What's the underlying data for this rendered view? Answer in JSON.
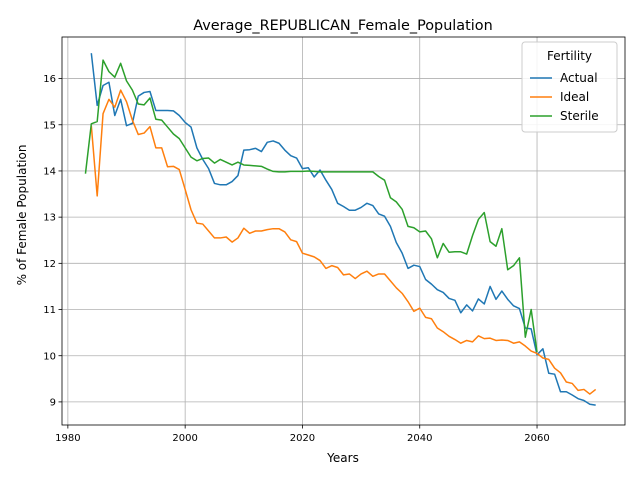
{
  "chart_data": {
    "type": "line",
    "title": "Average_REPUBLICAN_Female_Population",
    "xlabel": "Years",
    "ylabel": "% of Female Population",
    "xlim": [
      1979,
      2075
    ],
    "ylim": [
      8.5,
      16.9
    ],
    "xticks": [
      1980,
      2000,
      2020,
      2040,
      2060
    ],
    "yticks": [
      9,
      10,
      11,
      12,
      13,
      14,
      15,
      16
    ],
    "grid": true,
    "legend": {
      "title": "Fertility",
      "position": "top-right"
    },
    "series": [
      {
        "name": "Actual",
        "color": "#1f77b4",
        "points": [
          [
            1984,
            16.55
          ],
          [
            1985,
            15.42
          ],
          [
            1986,
            15.85
          ],
          [
            1987,
            15.92
          ],
          [
            1988,
            15.2
          ],
          [
            1989,
            15.55
          ],
          [
            1990,
            14.98
          ],
          [
            1991,
            15.03
          ],
          [
            1992,
            15.62
          ],
          [
            1993,
            15.7
          ],
          [
            1994,
            15.72
          ],
          [
            1995,
            15.31
          ],
          [
            1996,
            15.31
          ],
          [
            1997,
            15.31
          ],
          [
            1998,
            15.3
          ],
          [
            1999,
            15.2
          ],
          [
            2000,
            15.05
          ],
          [
            2001,
            14.95
          ],
          [
            2002,
            14.5
          ],
          [
            2003,
            14.25
          ],
          [
            2004,
            14.05
          ],
          [
            2005,
            13.73
          ],
          [
            2006,
            13.7
          ],
          [
            2007,
            13.7
          ],
          [
            2008,
            13.77
          ],
          [
            2009,
            13.9
          ],
          [
            2010,
            14.45
          ],
          [
            2011,
            14.46
          ],
          [
            2012,
            14.49
          ],
          [
            2013,
            14.42
          ],
          [
            2014,
            14.62
          ],
          [
            2015,
            14.65
          ],
          [
            2016,
            14.6
          ],
          [
            2017,
            14.45
          ],
          [
            2018,
            14.33
          ],
          [
            2019,
            14.28
          ],
          [
            2020,
            14.05
          ],
          [
            2021,
            14.07
          ],
          [
            2022,
            13.87
          ],
          [
            2023,
            14.02
          ],
          [
            2024,
            13.8
          ],
          [
            2025,
            13.6
          ],
          [
            2026,
            13.3
          ],
          [
            2027,
            13.23
          ],
          [
            2028,
            13.15
          ],
          [
            2029,
            13.15
          ],
          [
            2030,
            13.21
          ],
          [
            2031,
            13.3
          ],
          [
            2032,
            13.25
          ],
          [
            2033,
            13.07
          ],
          [
            2034,
            13.02
          ],
          [
            2035,
            12.8
          ],
          [
            2036,
            12.45
          ],
          [
            2037,
            12.22
          ],
          [
            2038,
            11.89
          ],
          [
            2039,
            11.96
          ],
          [
            2040,
            11.93
          ],
          [
            2041,
            11.65
          ],
          [
            2042,
            11.55
          ],
          [
            2043,
            11.43
          ],
          [
            2044,
            11.37
          ],
          [
            2045,
            11.24
          ],
          [
            2046,
            11.2
          ],
          [
            2047,
            10.93
          ],
          [
            2048,
            11.1
          ],
          [
            2049,
            10.97
          ],
          [
            2050,
            11.23
          ],
          [
            2051,
            11.12
          ],
          [
            2052,
            11.5
          ],
          [
            2053,
            11.22
          ],
          [
            2054,
            11.4
          ],
          [
            2055,
            11.22
          ],
          [
            2056,
            11.08
          ],
          [
            2057,
            11.02
          ],
          [
            2058,
            10.6
          ],
          [
            2059,
            10.58
          ],
          [
            2060,
            10.02
          ],
          [
            2061,
            10.15
          ],
          [
            2062,
            9.62
          ],
          [
            2063,
            9.6
          ],
          [
            2064,
            9.22
          ],
          [
            2065,
            9.22
          ],
          [
            2066,
            9.15
          ],
          [
            2067,
            9.07
          ],
          [
            2068,
            9.03
          ],
          [
            2069,
            8.95
          ],
          [
            2070,
            8.93
          ]
        ]
      },
      {
        "name": "Ideal",
        "color": "#ff7f0e",
        "points": [
          [
            1984,
            14.98
          ],
          [
            1985,
            13.46
          ],
          [
            1986,
            15.24
          ],
          [
            1987,
            15.55
          ],
          [
            1988,
            15.38
          ],
          [
            1989,
            15.75
          ],
          [
            1990,
            15.5
          ],
          [
            1991,
            15.1
          ],
          [
            1992,
            14.79
          ],
          [
            1993,
            14.82
          ],
          [
            1994,
            14.96
          ],
          [
            1995,
            14.5
          ],
          [
            1996,
            14.5
          ],
          [
            1997,
            14.09
          ],
          [
            1998,
            14.1
          ],
          [
            1999,
            14.03
          ],
          [
            2000,
            13.6
          ],
          [
            2001,
            13.16
          ],
          [
            2002,
            12.87
          ],
          [
            2003,
            12.85
          ],
          [
            2004,
            12.7
          ],
          [
            2005,
            12.55
          ],
          [
            2006,
            12.55
          ],
          [
            2007,
            12.57
          ],
          [
            2008,
            12.46
          ],
          [
            2009,
            12.55
          ],
          [
            2010,
            12.76
          ],
          [
            2011,
            12.65
          ],
          [
            2012,
            12.7
          ],
          [
            2013,
            12.7
          ],
          [
            2014,
            12.73
          ],
          [
            2015,
            12.75
          ],
          [
            2016,
            12.75
          ],
          [
            2017,
            12.68
          ],
          [
            2018,
            12.51
          ],
          [
            2019,
            12.47
          ],
          [
            2020,
            12.22
          ],
          [
            2021,
            12.18
          ],
          [
            2022,
            12.14
          ],
          [
            2023,
            12.06
          ],
          [
            2024,
            11.89
          ],
          [
            2025,
            11.95
          ],
          [
            2026,
            11.91
          ],
          [
            2027,
            11.75
          ],
          [
            2028,
            11.77
          ],
          [
            2029,
            11.67
          ],
          [
            2030,
            11.77
          ],
          [
            2031,
            11.83
          ],
          [
            2032,
            11.72
          ],
          [
            2033,
            11.77
          ],
          [
            2034,
            11.77
          ],
          [
            2035,
            11.62
          ],
          [
            2036,
            11.47
          ],
          [
            2037,
            11.35
          ],
          [
            2038,
            11.17
          ],
          [
            2039,
            10.96
          ],
          [
            2040,
            11.03
          ],
          [
            2041,
            10.83
          ],
          [
            2042,
            10.8
          ],
          [
            2043,
            10.6
          ],
          [
            2044,
            10.52
          ],
          [
            2045,
            10.42
          ],
          [
            2046,
            10.35
          ],
          [
            2047,
            10.27
          ],
          [
            2048,
            10.33
          ],
          [
            2049,
            10.3
          ],
          [
            2050,
            10.43
          ],
          [
            2051,
            10.37
          ],
          [
            2052,
            10.38
          ],
          [
            2053,
            10.33
          ],
          [
            2054,
            10.34
          ],
          [
            2055,
            10.33
          ],
          [
            2056,
            10.27
          ],
          [
            2057,
            10.3
          ],
          [
            2058,
            10.21
          ],
          [
            2059,
            10.1
          ],
          [
            2060,
            10.05
          ],
          [
            2061,
            9.95
          ],
          [
            2062,
            9.92
          ],
          [
            2063,
            9.73
          ],
          [
            2064,
            9.63
          ],
          [
            2065,
            9.43
          ],
          [
            2066,
            9.4
          ],
          [
            2067,
            9.25
          ],
          [
            2068,
            9.27
          ],
          [
            2069,
            9.17
          ],
          [
            2070,
            9.27
          ]
        ]
      },
      {
        "name": "Sterile",
        "color": "#2ca02c",
        "points": [
          [
            1983,
            13.94
          ],
          [
            1984,
            15.02
          ],
          [
            1985,
            15.07
          ],
          [
            1986,
            16.4
          ],
          [
            1987,
            16.15
          ],
          [
            1988,
            16.03
          ],
          [
            1989,
            16.33
          ],
          [
            1990,
            15.95
          ],
          [
            1991,
            15.75
          ],
          [
            1992,
            15.45
          ],
          [
            1993,
            15.43
          ],
          [
            1994,
            15.58
          ],
          [
            1995,
            15.12
          ],
          [
            1996,
            15.1
          ],
          [
            1997,
            14.95
          ],
          [
            1998,
            14.8
          ],
          [
            1999,
            14.7
          ],
          [
            2000,
            14.5
          ],
          [
            2001,
            14.3
          ],
          [
            2002,
            14.22
          ],
          [
            2003,
            14.27
          ],
          [
            2004,
            14.28
          ],
          [
            2005,
            14.17
          ],
          [
            2006,
            14.25
          ],
          [
            2007,
            14.19
          ],
          [
            2008,
            14.13
          ],
          [
            2009,
            14.19
          ],
          [
            2010,
            14.13
          ],
          [
            2011,
            14.12
          ],
          [
            2012,
            14.11
          ],
          [
            2013,
            14.1
          ],
          [
            2014,
            14.04
          ],
          [
            2015,
            13.99
          ],
          [
            2016,
            13.98
          ],
          [
            2017,
            13.98
          ],
          [
            2018,
            13.99
          ],
          [
            2019,
            13.99
          ],
          [
            2020,
            13.99
          ],
          [
            2021,
            14.0
          ],
          [
            2022,
            13.99
          ],
          [
            2023,
            13.98
          ],
          [
            2024,
            13.98
          ],
          [
            2025,
            13.98
          ],
          [
            2026,
            13.98
          ],
          [
            2027,
            13.98
          ],
          [
            2028,
            13.98
          ],
          [
            2029,
            13.98
          ],
          [
            2030,
            13.98
          ],
          [
            2031,
            13.98
          ],
          [
            2032,
            13.98
          ],
          [
            2033,
            13.88
          ],
          [
            2034,
            13.8
          ],
          [
            2035,
            13.42
          ],
          [
            2036,
            13.33
          ],
          [
            2037,
            13.17
          ],
          [
            2038,
            12.8
          ],
          [
            2039,
            12.77
          ],
          [
            2040,
            12.68
          ],
          [
            2041,
            12.7
          ],
          [
            2042,
            12.53
          ],
          [
            2043,
            12.12
          ],
          [
            2044,
            12.43
          ],
          [
            2045,
            12.24
          ],
          [
            2046,
            12.25
          ],
          [
            2047,
            12.25
          ],
          [
            2048,
            12.2
          ],
          [
            2049,
            12.6
          ],
          [
            2050,
            12.95
          ],
          [
            2051,
            13.1
          ],
          [
            2052,
            12.47
          ],
          [
            2053,
            12.37
          ],
          [
            2054,
            12.75
          ],
          [
            2055,
            11.86
          ],
          [
            2056,
            11.95
          ],
          [
            2057,
            12.12
          ],
          [
            2058,
            10.4
          ],
          [
            2059,
            11.0
          ],
          [
            2060,
            10.08
          ]
        ]
      }
    ]
  }
}
